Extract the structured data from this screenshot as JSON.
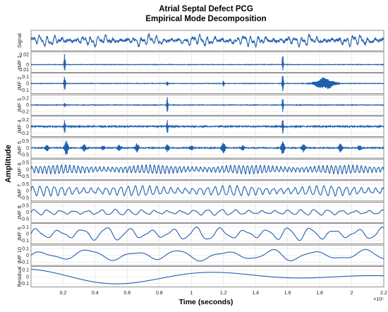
{
  "chart_data": {
    "type": "line",
    "title": "Atrial Septal Defect PCG",
    "subtitle": "Empirical Mode Decomposition",
    "xlabel": "Time (seconds)",
    "ylabel": "Amplitude",
    "x_multiplier": "×10⁵",
    "xlim": [
      0,
      2.2
    ],
    "x_ticks": [
      "0.2",
      "0.4",
      "0.6",
      "0.8",
      "1",
      "1.2",
      "1.4",
      "1.6",
      "1.8",
      "2",
      "2.2"
    ],
    "grid": true,
    "line_color": "#1f5fae",
    "series": [
      {
        "name": "Signal",
        "yticks": [],
        "ylim": [
          -1,
          1
        ],
        "kind": "signal",
        "amp": 0.6
      },
      {
        "name": "IMF 1",
        "yticks": [
          "0.02",
          "0",
          "-0.01"
        ],
        "ylim": [
          -0.015,
          0.025
        ],
        "kind": "spikes",
        "amp": 0.0005,
        "spikes": [
          [
            0.21,
            0.022,
            -0.012
          ],
          [
            1.57,
            0.018,
            -0.011
          ]
        ]
      },
      {
        "name": "IMF 2",
        "yticks": [
          "0.1",
          "0",
          "-0.1"
        ],
        "ylim": [
          -0.15,
          0.15
        ],
        "kind": "imf2",
        "amp": 0.004,
        "spikes": [
          [
            0.21,
            0.1,
            -0.09
          ],
          [
            1.57,
            0.12,
            -0.11
          ],
          [
            1.2,
            0.04,
            -0.04
          ],
          [
            0.85,
            0.03,
            -0.03
          ]
        ]
      },
      {
        "name": "IMF 3",
        "yticks": [
          "0.2",
          "0",
          "-0.2"
        ],
        "ylim": [
          -0.3,
          0.3
        ],
        "kind": "spikes",
        "amp": 0.01,
        "spikes": [
          [
            0.85,
            0.24,
            -0.22
          ],
          [
            1.57,
            0.2,
            -0.2
          ],
          [
            0.21,
            0.06,
            -0.06
          ]
        ]
      },
      {
        "name": "IMF 4",
        "yticks": [
          "0.2",
          "0",
          "-0.2"
        ],
        "ylim": [
          -0.3,
          0.3
        ],
        "kind": "spikes",
        "amp": 0.02,
        "spikes": [
          [
            0.21,
            0.18,
            -0.19
          ],
          [
            0.85,
            0.2,
            -0.2
          ],
          [
            1.57,
            0.22,
            -0.22
          ]
        ]
      },
      {
        "name": "IMF 5",
        "yticks": [
          "0.5",
          "0",
          "-0.5"
        ],
        "ylim": [
          -0.75,
          0.75
        ],
        "kind": "bursts",
        "amp": 0.04,
        "bursts": [
          [
            0.1,
            0.25
          ],
          [
            0.22,
            0.6
          ],
          [
            0.33,
            0.3
          ],
          [
            0.45,
            0.2
          ],
          [
            0.55,
            0.25
          ],
          [
            0.66,
            0.35
          ],
          [
            0.85,
            0.3
          ],
          [
            1.0,
            0.2
          ],
          [
            1.2,
            0.45
          ],
          [
            1.32,
            0.2
          ],
          [
            1.57,
            0.5
          ],
          [
            1.7,
            0.3
          ],
          [
            1.93,
            0.35
          ],
          [
            2.05,
            0.2
          ]
        ]
      },
      {
        "name": "IMF 6",
        "yticks": [
          "0.5",
          "0",
          "-0.5"
        ],
        "ylim": [
          -0.75,
          0.75
        ],
        "kind": "osc",
        "amp": 0.3,
        "freq": 38
      },
      {
        "name": "IMF 7",
        "yticks": [
          "0.5",
          "0",
          "-0.5"
        ],
        "ylim": [
          -0.75,
          0.75
        ],
        "kind": "osc",
        "amp": 0.35,
        "freq": 22
      },
      {
        "name": "IMF 8",
        "yticks": [
          "0.5",
          "0",
          "-0.5"
        ],
        "ylim": [
          -0.75,
          0.75
        ],
        "kind": "osc",
        "amp": 0.2,
        "freq": 12
      },
      {
        "name": "IMF 9",
        "yticks": [
          "0.1",
          "0",
          "-0.1"
        ],
        "ylim": [
          -0.15,
          0.15
        ],
        "kind": "osc",
        "amp": 0.09,
        "freq": 7
      },
      {
        "name": "IMF 10",
        "yticks": [
          "0.1",
          "0",
          "-0.1"
        ],
        "ylim": [
          -0.15,
          0.15
        ],
        "kind": "osc",
        "amp": 0.08,
        "freq": 3.5
      },
      {
        "name": "Residual",
        "yticks": [
          "0.1",
          "0",
          "-0.1"
        ],
        "ylim": [
          -0.15,
          0.15
        ],
        "kind": "residual",
        "amp": 0.1
      }
    ]
  }
}
